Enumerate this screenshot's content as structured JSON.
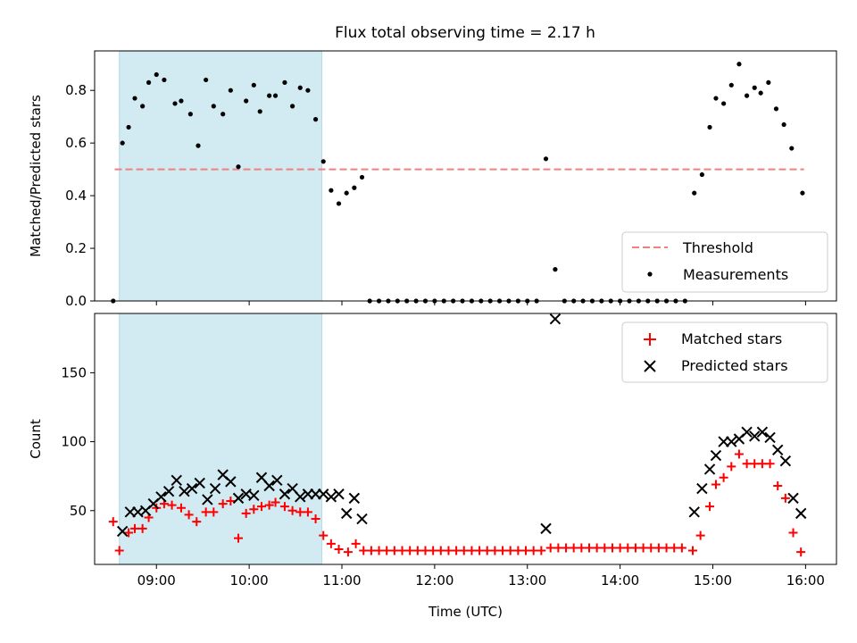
{
  "title": "Flux total observing time = 2.17 h",
  "colors": {
    "threshold": "#f08080",
    "measurements": "#000000",
    "matched": "#ff0000",
    "predicted": "#000000",
    "shade": "#add8e6"
  },
  "chart_data": [
    {
      "type": "scatter",
      "ylabel": "Matched/Predicted stars",
      "xlabel": "",
      "xlim": [
        "08:20",
        "16:20"
      ],
      "ylim": [
        0,
        0.95
      ],
      "yticks": [
        0,
        0.2,
        0.4,
        0.6,
        0.8
      ],
      "ytick_labels": [
        "0.0",
        "0.2",
        "0.4",
        "0.6",
        "0.8"
      ],
      "shaded_interval": [
        "08:36",
        "10:47"
      ],
      "legend_position": "lower right",
      "threshold": {
        "name": "Threshold",
        "y": 0.5,
        "x_start": "08:33",
        "x_end": "15:59"
      },
      "series": [
        {
          "name": "Measurements",
          "points": [
            [
              "08:32",
              0.0
            ],
            [
              "08:38",
              0.6
            ],
            [
              "08:42",
              0.66
            ],
            [
              "08:46",
              0.77
            ],
            [
              "08:51",
              0.74
            ],
            [
              "08:55",
              0.83
            ],
            [
              "09:00",
              0.86
            ],
            [
              "09:05",
              0.84
            ],
            [
              "09:12",
              0.75
            ],
            [
              "09:16",
              0.76
            ],
            [
              "09:22",
              0.71
            ],
            [
              "09:27",
              0.59
            ],
            [
              "09:32",
              0.84
            ],
            [
              "09:37",
              0.74
            ],
            [
              "09:43",
              0.71
            ],
            [
              "09:48",
              0.8
            ],
            [
              "09:53",
              0.51
            ],
            [
              "09:58",
              0.76
            ],
            [
              "10:03",
              0.82
            ],
            [
              "10:07",
              0.72
            ],
            [
              "10:13",
              0.78
            ],
            [
              "10:17",
              0.78
            ],
            [
              "10:23",
              0.83
            ],
            [
              "10:28",
              0.74
            ],
            [
              "10:33",
              0.81
            ],
            [
              "10:38",
              0.8
            ],
            [
              "10:43",
              0.69
            ],
            [
              "10:48",
              0.53
            ],
            [
              "10:53",
              0.42
            ],
            [
              "10:58",
              0.37
            ],
            [
              "11:03",
              0.41
            ],
            [
              "11:08",
              0.43
            ],
            [
              "11:13",
              0.47
            ],
            [
              "11:18",
              0.0
            ],
            [
              "11:24",
              0.0
            ],
            [
              "11:30",
              0.0
            ],
            [
              "11:36",
              0.0
            ],
            [
              "11:42",
              0.0
            ],
            [
              "11:48",
              0.0
            ],
            [
              "11:54",
              0.0
            ],
            [
              "12:00",
              0.0
            ],
            [
              "12:06",
              0.0
            ],
            [
              "12:12",
              0.0
            ],
            [
              "12:18",
              0.0
            ],
            [
              "12:24",
              0.0
            ],
            [
              "12:30",
              0.0
            ],
            [
              "12:36",
              0.0
            ],
            [
              "12:42",
              0.0
            ],
            [
              "12:48",
              0.0
            ],
            [
              "12:54",
              0.0
            ],
            [
              "13:00",
              0.0
            ],
            [
              "13:06",
              0.0
            ],
            [
              "13:12",
              0.54
            ],
            [
              "13:18",
              0.12
            ],
            [
              "13:24",
              0.0
            ],
            [
              "13:30",
              0.0
            ],
            [
              "13:36",
              0.0
            ],
            [
              "13:42",
              0.0
            ],
            [
              "13:48",
              0.0
            ],
            [
              "13:54",
              0.0
            ],
            [
              "14:00",
              0.0
            ],
            [
              "14:06",
              0.0
            ],
            [
              "14:12",
              0.0
            ],
            [
              "14:18",
              0.0
            ],
            [
              "14:24",
              0.0
            ],
            [
              "14:30",
              0.0
            ],
            [
              "14:36",
              0.0
            ],
            [
              "14:42",
              0.0
            ],
            [
              "14:48",
              0.41
            ],
            [
              "14:53",
              0.48
            ],
            [
              "14:58",
              0.66
            ],
            [
              "15:02",
              0.77
            ],
            [
              "15:07",
              0.75
            ],
            [
              "15:12",
              0.82
            ],
            [
              "15:17",
              0.9
            ],
            [
              "15:22",
              0.78
            ],
            [
              "15:27",
              0.81
            ],
            [
              "15:31",
              0.79
            ],
            [
              "15:36",
              0.83
            ],
            [
              "15:41",
              0.73
            ],
            [
              "15:46",
              0.67
            ],
            [
              "15:51",
              0.58
            ],
            [
              "15:58",
              0.41
            ]
          ]
        }
      ]
    },
    {
      "type": "scatter",
      "ylabel": "Count",
      "xlabel": "Time (UTC)",
      "xlim": [
        "08:20",
        "16:20"
      ],
      "ylim": [
        11,
        193
      ],
      "yticks": [
        50,
        100,
        150
      ],
      "ytick_labels": [
        "50",
        "100",
        "150"
      ],
      "xticks": [
        "09:00",
        "10:00",
        "11:00",
        "12:00",
        "13:00",
        "14:00",
        "15:00",
        "16:00"
      ],
      "shaded_interval": [
        "08:36",
        "10:47"
      ],
      "legend_position": "upper right",
      "series": [
        {
          "name": "Matched stars",
          "marker": "plus",
          "points": [
            [
              "08:32",
              42
            ],
            [
              "08:36",
              21
            ],
            [
              "08:42",
              34
            ],
            [
              "08:46",
              37
            ],
            [
              "08:51",
              37
            ],
            [
              "08:55",
              45
            ],
            [
              "09:00",
              52
            ],
            [
              "09:05",
              55
            ],
            [
              "09:10",
              54
            ],
            [
              "09:16",
              52
            ],
            [
              "09:21",
              47
            ],
            [
              "09:26",
              42
            ],
            [
              "09:32",
              49
            ],
            [
              "09:37",
              49
            ],
            [
              "09:43",
              55
            ],
            [
              "09:48",
              57
            ],
            [
              "09:53",
              30
            ],
            [
              "09:58",
              48
            ],
            [
              "10:03",
              51
            ],
            [
              "10:08",
              53
            ],
            [
              "10:13",
              54
            ],
            [
              "10:17",
              56
            ],
            [
              "10:23",
              53
            ],
            [
              "10:28",
              50
            ],
            [
              "10:33",
              49
            ],
            [
              "10:38",
              49
            ],
            [
              "10:43",
              44
            ],
            [
              "10:48",
              32
            ],
            [
              "10:53",
              26
            ],
            [
              "10:58",
              22
            ],
            [
              "11:04",
              20
            ],
            [
              "11:09",
              26
            ],
            [
              "11:14",
              21
            ],
            [
              "11:19",
              21
            ],
            [
              "11:24",
              21
            ],
            [
              "11:29",
              21
            ],
            [
              "11:34",
              21
            ],
            [
              "11:39",
              21
            ],
            [
              "11:44",
              21
            ],
            [
              "11:49",
              21
            ],
            [
              "11:54",
              21
            ],
            [
              "11:59",
              21
            ],
            [
              "12:04",
              21
            ],
            [
              "12:09",
              21
            ],
            [
              "12:14",
              21
            ],
            [
              "12:19",
              21
            ],
            [
              "12:24",
              21
            ],
            [
              "12:29",
              21
            ],
            [
              "12:34",
              21
            ],
            [
              "12:39",
              21
            ],
            [
              "12:44",
              21
            ],
            [
              "12:49",
              21
            ],
            [
              "12:54",
              21
            ],
            [
              "12:59",
              21
            ],
            [
              "13:04",
              21
            ],
            [
              "13:09",
              21
            ],
            [
              "13:15",
              23
            ],
            [
              "13:20",
              23
            ],
            [
              "13:25",
              23
            ],
            [
              "13:30",
              23
            ],
            [
              "13:35",
              23
            ],
            [
              "13:40",
              23
            ],
            [
              "13:45",
              23
            ],
            [
              "13:50",
              23
            ],
            [
              "13:55",
              23
            ],
            [
              "14:00",
              23
            ],
            [
              "14:05",
              23
            ],
            [
              "14:10",
              23
            ],
            [
              "14:15",
              23
            ],
            [
              "14:20",
              23
            ],
            [
              "14:25",
              23
            ],
            [
              "14:30",
              23
            ],
            [
              "14:35",
              23
            ],
            [
              "14:40",
              23
            ],
            [
              "14:47",
              21
            ],
            [
              "14:52",
              32
            ],
            [
              "14:58",
              53
            ],
            [
              "15:02",
              69
            ],
            [
              "15:07",
              74
            ],
            [
              "15:12",
              82
            ],
            [
              "15:17",
              91
            ],
            [
              "15:22",
              84
            ],
            [
              "15:27",
              84
            ],
            [
              "15:32",
              84
            ],
            [
              "15:37",
              84
            ],
            [
              "15:42",
              68
            ],
            [
              "15:47",
              59
            ],
            [
              "15:52",
              34
            ],
            [
              "15:57",
              20
            ]
          ]
        },
        {
          "name": "Predicted stars",
          "marker": "x",
          "points": [
            [
              "08:38",
              35
            ],
            [
              "08:43",
              49
            ],
            [
              "08:48",
              49
            ],
            [
              "08:53",
              50
            ],
            [
              "08:58",
              55
            ],
            [
              "09:03",
              60
            ],
            [
              "09:08",
              64
            ],
            [
              "09:13",
              72
            ],
            [
              "09:18",
              64
            ],
            [
              "09:23",
              66
            ],
            [
              "09:28",
              70
            ],
            [
              "09:33",
              58
            ],
            [
              "09:38",
              66
            ],
            [
              "09:43",
              76
            ],
            [
              "09:48",
              71
            ],
            [
              "09:53",
              59
            ],
            [
              "09:58",
              62
            ],
            [
              "10:03",
              61
            ],
            [
              "10:08",
              74
            ],
            [
              "10:13",
              68
            ],
            [
              "10:18",
              72
            ],
            [
              "10:23",
              62
            ],
            [
              "10:28",
              66
            ],
            [
              "10:33",
              60
            ],
            [
              "10:38",
              62
            ],
            [
              "10:43",
              62
            ],
            [
              "10:48",
              62
            ],
            [
              "10:53",
              60
            ],
            [
              "10:58",
              62
            ],
            [
              "11:03",
              48
            ],
            [
              "11:08",
              59
            ],
            [
              "11:13",
              44
            ],
            [
              "13:12",
              37
            ],
            [
              "13:18",
              189
            ],
            [
              "14:48",
              49
            ],
            [
              "14:53",
              66
            ],
            [
              "14:58",
              80
            ],
            [
              "15:02",
              90
            ],
            [
              "15:07",
              100
            ],
            [
              "15:12",
              100
            ],
            [
              "15:17",
              102
            ],
            [
              "15:22",
              107
            ],
            [
              "15:27",
              104
            ],
            [
              "15:32",
              107
            ],
            [
              "15:37",
              103
            ],
            [
              "15:42",
              94
            ],
            [
              "15:47",
              86
            ],
            [
              "15:52",
              59
            ],
            [
              "15:57",
              48
            ]
          ]
        }
      ]
    }
  ]
}
